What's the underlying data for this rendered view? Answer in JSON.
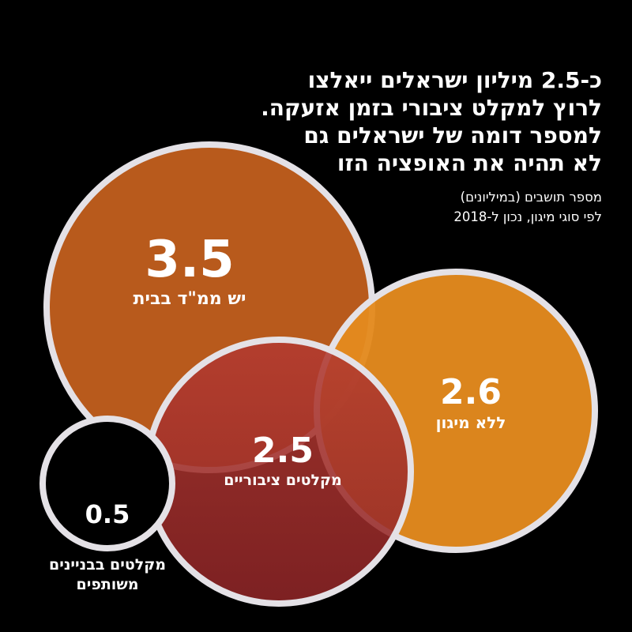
{
  "title_lines": [
    "כ-2.5 מיליון ישראלים ייאלצו",
    "לרוץ למקלט ציבורי בזמן אזעקה.",
    "למספר דומה של ישראלים גם",
    "לא תהיה את האופציה הזו"
  ],
  "subtitle_lines": [
    "מספר תושבים (במיליונים)",
    "לפי סוגי מיגון, נכון ל-2018"
  ],
  "colors": {
    "background": "#000000",
    "outline": "#e4e1e6"
  },
  "chart_data": {
    "type": "bubble",
    "unit": "מיליון",
    "items": [
      {
        "label": "יש ממ\"ד בבית",
        "value_label": "3.5",
        "value": 3.5,
        "color": "#b85a1c"
      },
      {
        "label": "ללא מיגון",
        "value_label": "2.6",
        "value": 2.6,
        "color": "#e48a1e"
      },
      {
        "label": "מקלטים ציבוריים",
        "value_label": "2.5",
        "value": 2.5,
        "color": "#a0322c"
      },
      {
        "label": "מקלטים בבניינים",
        "label_line2": "משותפים",
        "value_label": "0.5",
        "value": 0.5,
        "color": "#000000"
      }
    ]
  }
}
